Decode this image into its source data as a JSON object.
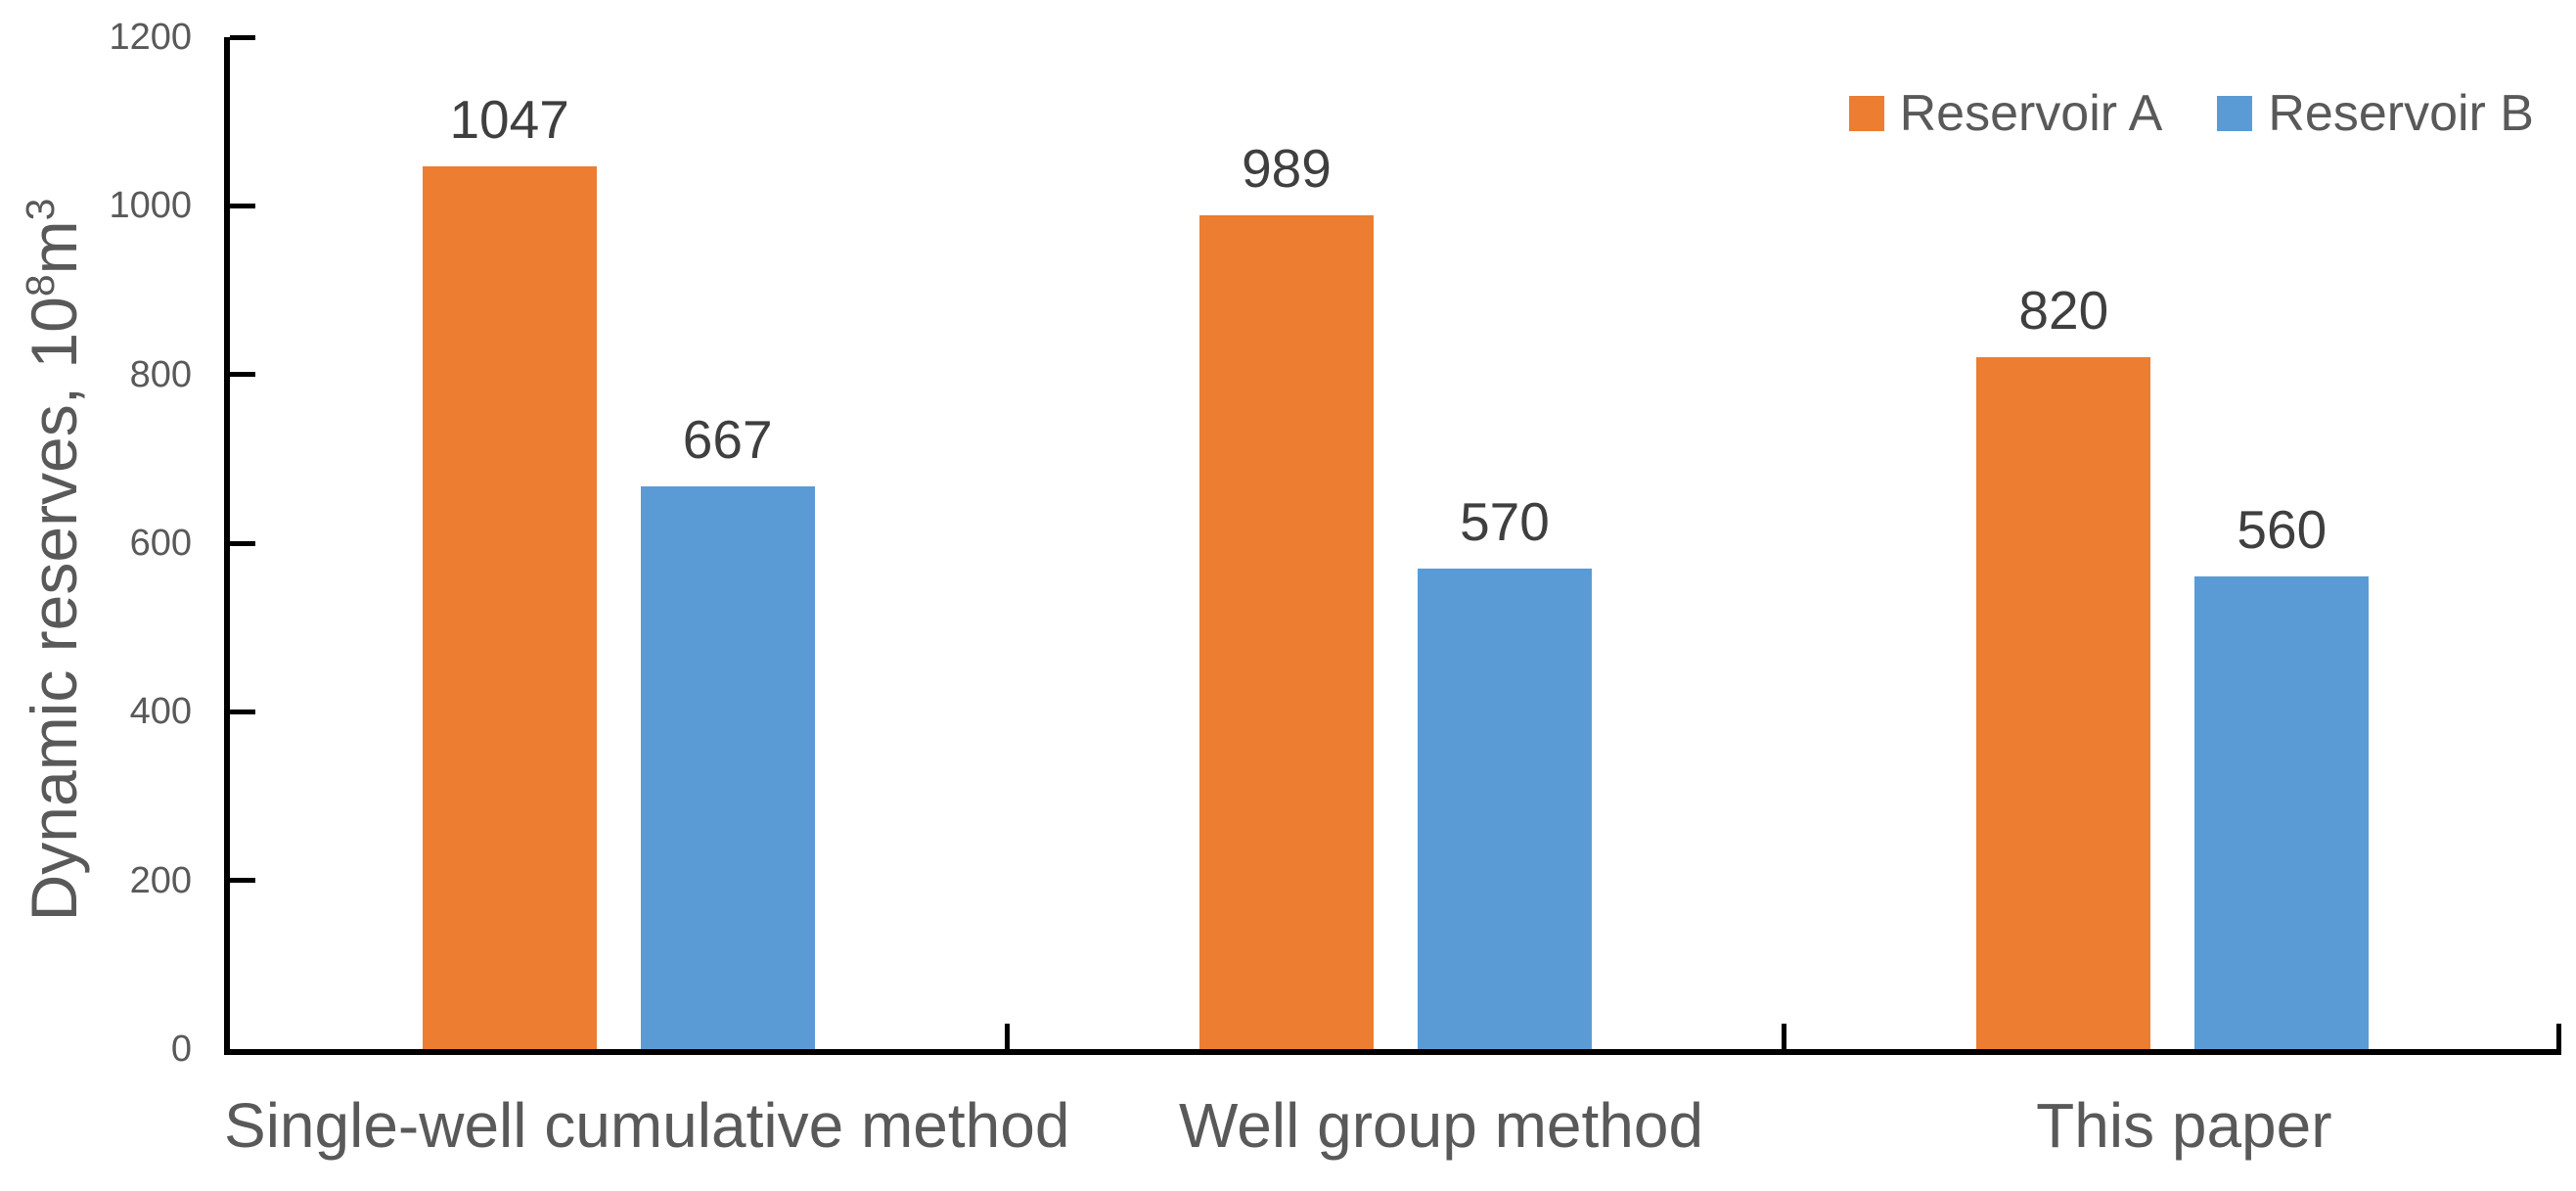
{
  "chart_data": {
    "type": "bar",
    "categories": [
      "Single-well cumulative method",
      "Well group method",
      "This paper"
    ],
    "series": [
      {
        "name": "Reservoir A",
        "color": "#ED7D31",
        "values": [
          1047,
          989,
          820
        ]
      },
      {
        "name": "Reservoir B",
        "color": "#5B9BD5",
        "values": [
          667,
          570,
          560
        ]
      }
    ],
    "title": "",
    "xlabel": "",
    "ylabel": "Dynamic reserves, 10⁸m³",
    "ylabel_parts": {
      "prefix": "Dynamic reserves, 10",
      "sup1": "8",
      "mid": "m",
      "sup2": "3"
    },
    "ylim": [
      0,
      1200
    ],
    "y_ticks": [
      0,
      200,
      400,
      600,
      800,
      1000,
      1200
    ],
    "data_labels": true,
    "grid": false,
    "legend_position": "top-right"
  },
  "colors": {
    "axis": "#000000",
    "tick_label_text": "#595959",
    "category_label_text": "#595959",
    "data_label_text": "#3f3f3f",
    "legend_text": "#595959",
    "series_a": "#ED7D31",
    "series_b": "#5B9BD5",
    "background": "#ffffff"
  }
}
